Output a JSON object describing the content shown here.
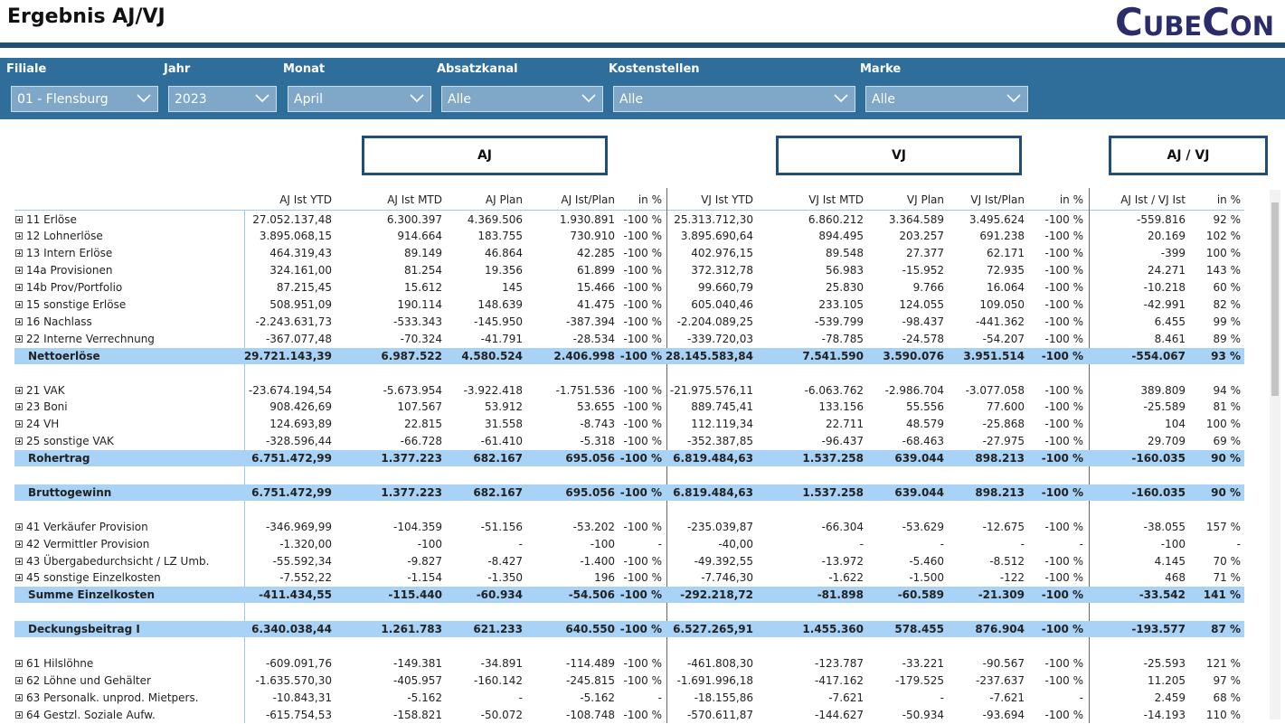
{
  "header": {
    "title": "Ergebnis AJ/VJ",
    "logo": "CubeCon"
  },
  "filters": [
    {
      "label": "Filiale",
      "value": "01 - Flensburg"
    },
    {
      "label": "Jahr",
      "value": "2023"
    },
    {
      "label": "Monat",
      "value": "April"
    },
    {
      "label": "Absatzkanal",
      "value": "Alle"
    },
    {
      "label": "Kostenstellen",
      "value": "Alle"
    },
    {
      "label": "Marke",
      "value": "Alle"
    }
  ],
  "column_groups": [
    "AJ",
    "VJ",
    "AJ / VJ"
  ],
  "table": {
    "columns": [
      "AJ Ist YTD",
      "AJ Ist MTD",
      "AJ Plan",
      "AJ Ist/Plan",
      "in %",
      "VJ Ist YTD",
      "VJ Ist MTD",
      "VJ Plan",
      "VJ Ist/Plan",
      "in %",
      "AJ Ist / VJ Ist",
      "in %"
    ],
    "groups": [
      {
        "rows": [
          {
            "label": "11 Erlöse",
            "cells": [
              "27.052.137,48",
              "6.300.397",
              "4.369.506",
              "1.930.891",
              "-100 %",
              "25.313.712,30",
              "6.860.212",
              "3.364.589",
              "3.495.624",
              "-100 %",
              "-559.816",
              "92 %"
            ]
          },
          {
            "label": "12 Lohnerlöse",
            "cells": [
              "3.895.068,15",
              "914.664",
              "183.755",
              "730.910",
              "-100 %",
              "3.895.690,64",
              "894.495",
              "203.257",
              "691.238",
              "-100 %",
              "20.169",
              "102 %"
            ]
          },
          {
            "label": "13 Intern Erlöse",
            "cells": [
              "464.319,43",
              "89.149",
              "46.864",
              "42.285",
              "-100 %",
              "402.976,15",
              "89.548",
              "27.377",
              "62.171",
              "-100 %",
              "-399",
              "100 %"
            ]
          },
          {
            "label": "14a Provisionen",
            "cells": [
              "324.161,00",
              "81.254",
              "19.356",
              "61.899",
              "-100 %",
              "372.312,78",
              "56.983",
              "-15.952",
              "72.935",
              "-100 %",
              "24.271",
              "143 %"
            ]
          },
          {
            "label": "14b Prov/Portfolio",
            "cells": [
              "87.215,45",
              "15.612",
              "145",
              "15.466",
              "-100 %",
              "99.660,79",
              "25.830",
              "9.766",
              "16.064",
              "-100 %",
              "-10.218",
              "60 %"
            ]
          },
          {
            "label": "15 sonstige Erlöse",
            "cells": [
              "508.951,09",
              "190.114",
              "148.639",
              "41.475",
              "-100 %",
              "605.040,46",
              "233.105",
              "124.055",
              "109.050",
              "-100 %",
              "-42.991",
              "82 %"
            ]
          },
          {
            "label": "16 Nachlass",
            "cells": [
              "-2.243.631,73",
              "-533.343",
              "-145.950",
              "-387.394",
              "-100 %",
              "-2.204.089,25",
              "-539.799",
              "-98.437",
              "-441.362",
              "-100 %",
              "6.455",
              "99 %"
            ]
          },
          {
            "label": "22 Interne Verrechnung",
            "cells": [
              "-367.077,48",
              "-70.324",
              "-41.791",
              "-28.534",
              "-100 %",
              "-339.720,03",
              "-78.785",
              "-24.578",
              "-54.207",
              "-100 %",
              "8.461",
              "89 %"
            ]
          }
        ],
        "total": {
          "label": "Nettoerlöse",
          "cells": [
            "29.721.143,39",
            "6.987.522",
            "4.580.524",
            "2.406.998",
            "-100 %",
            "28.145.583,84",
            "7.541.590",
            "3.590.076",
            "3.951.514",
            "-100 %",
            "-554.067",
            "93 %"
          ]
        }
      },
      {
        "rows": [
          {
            "label": "21 VAK",
            "cells": [
              "-23.674.194,54",
              "-5.673.954",
              "-3.922.418",
              "-1.751.536",
              "-100 %",
              "-21.975.576,11",
              "-6.063.762",
              "-2.986.704",
              "-3.077.058",
              "-100 %",
              "389.809",
              "94 %"
            ]
          },
          {
            "label": "23 Boni",
            "cells": [
              "908.426,69",
              "107.567",
              "53.912",
              "53.655",
              "-100 %",
              "889.745,41",
              "133.156",
              "55.556",
              "77.600",
              "-100 %",
              "-25.589",
              "81 %"
            ]
          },
          {
            "label": "24 VH",
            "cells": [
              "124.693,89",
              "22.815",
              "31.558",
              "-8.743",
              "-100 %",
              "112.119,34",
              "22.711",
              "48.579",
              "-25.868",
              "-100 %",
              "104",
              "100 %"
            ]
          },
          {
            "label": "25 sonstige VAK",
            "cells": [
              "-328.596,44",
              "-66.728",
              "-61.410",
              "-5.318",
              "-100 %",
              "-352.387,85",
              "-96.437",
              "-68.463",
              "-27.975",
              "-100 %",
              "29.709",
              "69 %"
            ]
          }
        ],
        "total": {
          "label": "Rohertrag",
          "cells": [
            "6.751.472,99",
            "1.377.223",
            "682.167",
            "695.056",
            "-100 %",
            "6.819.484,63",
            "1.537.258",
            "639.044",
            "898.213",
            "-100 %",
            "-160.035",
            "90 %"
          ]
        }
      },
      {
        "rows": [],
        "total": {
          "label": "Bruttogewinn",
          "cells": [
            "6.751.472,99",
            "1.377.223",
            "682.167",
            "695.056",
            "-100 %",
            "6.819.484,63",
            "1.537.258",
            "639.044",
            "898.213",
            "-100 %",
            "-160.035",
            "90 %"
          ]
        }
      },
      {
        "rows": [
          {
            "label": "41 Verkäufer Provision",
            "cells": [
              "-346.969,99",
              "-104.359",
              "-51.156",
              "-53.202",
              "-100 %",
              "-235.039,87",
              "-66.304",
              "-53.629",
              "-12.675",
              "-100 %",
              "-38.055",
              "157 %"
            ]
          },
          {
            "label": "42 Vermittler Provision",
            "cells": [
              "-1.320,00",
              "-100",
              "-",
              "-100",
              "-",
              "-40,00",
              "-",
              "-",
              "-",
              "-",
              "-100",
              "-"
            ]
          },
          {
            "label": "43 Übergabedurchsicht / LZ Umb.",
            "cells": [
              "-55.592,34",
              "-9.827",
              "-8.427",
              "-1.400",
              "-100 %",
              "-49.392,55",
              "-13.972",
              "-5.460",
              "-8.512",
              "-100 %",
              "4.145",
              "70 %"
            ]
          },
          {
            "label": "45 sonstige Einzelkosten",
            "cells": [
              "-7.552,22",
              "-1.154",
              "-1.350",
              "196",
              "-100 %",
              "-7.746,30",
              "-1.622",
              "-1.500",
              "-122",
              "-100 %",
              "468",
              "71 %"
            ]
          }
        ],
        "total": {
          "label": "Summe Einzelkosten",
          "cells": [
            "-411.434,55",
            "-115.440",
            "-60.934",
            "-54.506",
            "-100 %",
            "-292.218,72",
            "-81.898",
            "-60.589",
            "-21.309",
            "-100 %",
            "-33.542",
            "141 %"
          ]
        }
      },
      {
        "rows": [],
        "total": {
          "label": "Deckungsbeitrag I",
          "cells": [
            "6.340.038,44",
            "1.261.783",
            "621.233",
            "640.550",
            "-100 %",
            "6.527.265,91",
            "1.455.360",
            "578.455",
            "876.904",
            "-100 %",
            "-193.577",
            "87 %"
          ]
        }
      },
      {
        "rows": [
          {
            "label": "61 Hilslöhne",
            "cells": [
              "-609.091,76",
              "-149.381",
              "-34.891",
              "-114.489",
              "-100 %",
              "-461.808,30",
              "-123.787",
              "-33.221",
              "-90.567",
              "-100 %",
              "-25.593",
              "121 %"
            ]
          },
          {
            "label": "62 Löhne und Gehälter",
            "cells": [
              "-1.635.570,30",
              "-405.957",
              "-160.142",
              "-245.815",
              "-100 %",
              "-1.691.996,18",
              "-417.162",
              "-179.525",
              "-237.637",
              "-100 %",
              "11.205",
              "97 %"
            ]
          },
          {
            "label": "63 Personalk. unprod. Mietpers.",
            "cells": [
              "-10.843,31",
              "-5.162",
              "-",
              "-5.162",
              "-",
              "-18.155,86",
              "-7.621",
              "-",
              "-7.621",
              "-",
              "2.459",
              "68 %"
            ]
          },
          {
            "label": "64 Gestzl. Soziale Aufw.",
            "cells": [
              "-615.754,53",
              "-158.821",
              "-50.072",
              "-108.748",
              "-100 %",
              "-570.611,87",
              "-144.627",
              "-50.934",
              "-93.694",
              "-100 %",
              "-14.193",
              "110 %"
            ]
          }
        ]
      }
    ]
  }
}
